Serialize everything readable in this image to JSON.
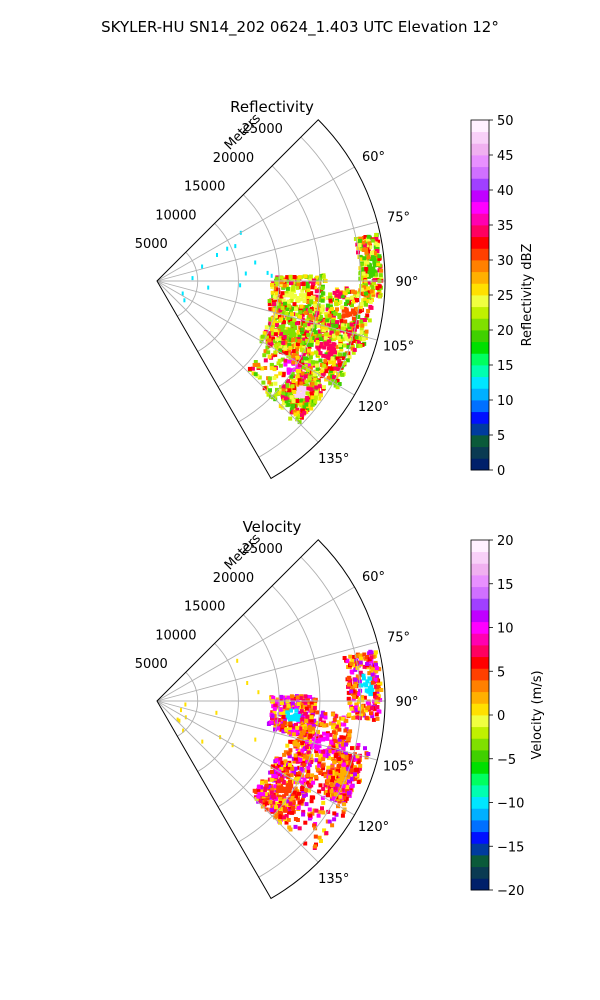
{
  "figure_title": "SKYLER-HU  SN14_202  0624_1.403 UTC Elevation 12°",
  "chart_data": [
    {
      "type": "polar-sector",
      "title": "Reflectivity",
      "radial_label": "Meters",
      "radial_ticks": [
        "5000",
        "10000",
        "15000",
        "20000",
        "25000"
      ],
      "angle_ticks": [
        "60°",
        "75°",
        "90°",
        "105°",
        "120°",
        "135°"
      ],
      "angle_range_deg": [
        45,
        150
      ],
      "range_max_m": 28000,
      "grid": true,
      "colorbar": {
        "label": "Reflectivity dBZ",
        "ticks": [
          "0",
          "5",
          "10",
          "15",
          "20",
          "25",
          "30",
          "35",
          "40",
          "45",
          "50"
        ],
        "range": [
          0,
          50
        ],
        "colors": [
          "#00206a",
          "#0a3a52",
          "#0a5a3a",
          "#003c9e",
          "#0010ff",
          "#0070ff",
          "#00b0ff",
          "#00e6ff",
          "#00ffb0",
          "#00ff60",
          "#00e000",
          "#40d000",
          "#80e000",
          "#c0f000",
          "#f0ff40",
          "#ffe000",
          "#ffb000",
          "#ff8000",
          "#ff4000",
          "#ff0000",
          "#ff0060",
          "#ff00b0",
          "#ff00ff",
          "#c000ff",
          "#a040ff",
          "#d070ff",
          "#e890ff",
          "#f0b0f0",
          "#f8d0f8",
          "#fff0ff"
        ]
      }
    },
    {
      "type": "polar-sector",
      "title": "Velocity",
      "radial_label": "Meters",
      "radial_ticks": [
        "5000",
        "10000",
        "15000",
        "20000",
        "25000"
      ],
      "angle_ticks": [
        "60°",
        "75°",
        "90°",
        "105°",
        "120°",
        "135°"
      ],
      "angle_range_deg": [
        45,
        150
      ],
      "range_max_m": 28000,
      "grid": true,
      "colorbar": {
        "label": "Velocity (m/s)",
        "ticks": [
          "−20",
          "−15",
          "−10",
          "−5",
          "0",
          "5",
          "10",
          "15",
          "20"
        ],
        "range": [
          -20,
          20
        ],
        "colors": [
          "#00206a",
          "#0a3a52",
          "#0a5a3a",
          "#003c9e",
          "#0010ff",
          "#0070ff",
          "#00b0ff",
          "#00e6ff",
          "#00ffb0",
          "#00ff60",
          "#00e000",
          "#40d000",
          "#80e000",
          "#c0f000",
          "#f0ff40",
          "#ffe000",
          "#ffb000",
          "#ff8000",
          "#ff4000",
          "#ff0000",
          "#ff0060",
          "#ff00b0",
          "#ff00ff",
          "#c000ff",
          "#a040ff",
          "#d070ff",
          "#e890ff",
          "#f0b0f0",
          "#f8d0f8",
          "#fff0ff"
        ]
      }
    }
  ]
}
